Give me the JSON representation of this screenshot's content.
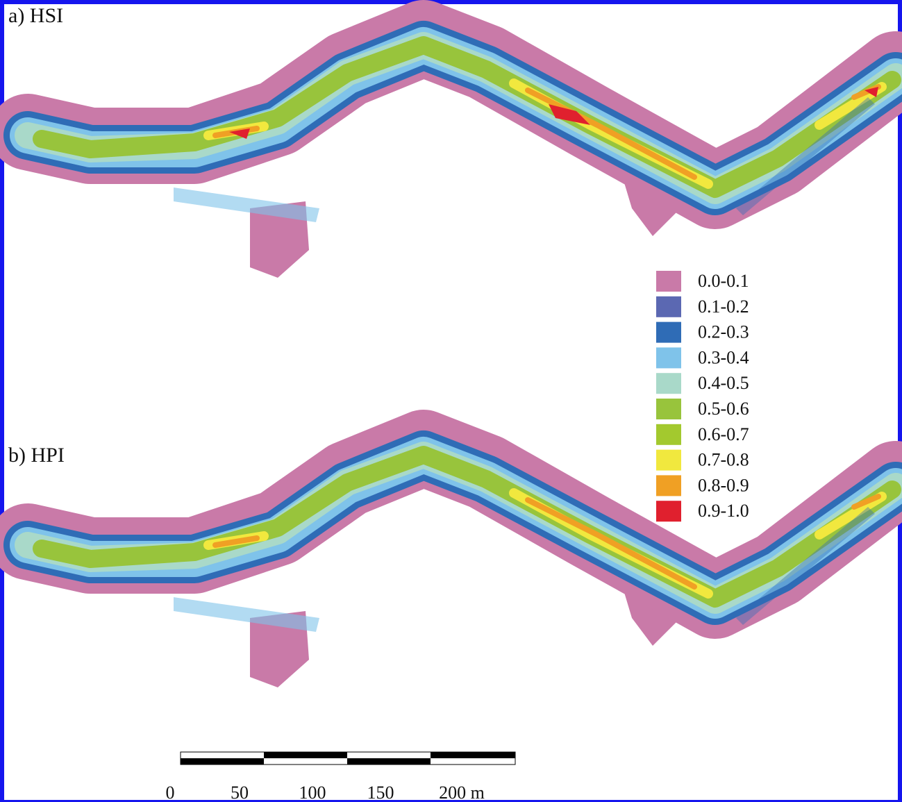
{
  "panels": [
    {
      "label": "a) HSI"
    },
    {
      "label": "b) HPI"
    }
  ],
  "legend": {
    "items": [
      {
        "label": "0.0-0.1",
        "color": "#c97aa8"
      },
      {
        "label": "0.1-0.2",
        "color": "#5b68b2"
      },
      {
        "label": "0.2-0.3",
        "color": "#2f6cb6"
      },
      {
        "label": "0.3-0.4",
        "color": "#7fc3ea"
      },
      {
        "label": "0.4-0.5",
        "color": "#a9d9c9"
      },
      {
        "label": "0.5-0.6",
        "color": "#98c43c"
      },
      {
        "label": "0.6-0.7",
        "color": "#a3c92e"
      },
      {
        "label": "0.7-0.8",
        "color": "#f1e83e"
      },
      {
        "label": "0.8-0.9",
        "color": "#f0a024"
      },
      {
        "label": "0.9-1.0",
        "color": "#e0202e"
      }
    ]
  },
  "scale_bar": {
    "labels": [
      "0",
      "50",
      "100",
      "150",
      "200 m"
    ]
  }
}
